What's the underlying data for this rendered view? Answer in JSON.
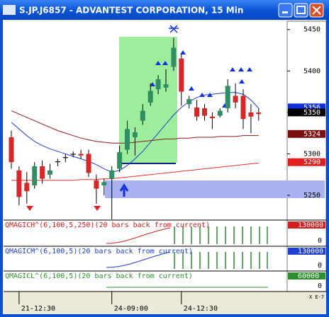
{
  "window": {
    "title": "S.JP.J6857 - ADVANTEST CORPORATION, 15 Min"
  },
  "chart_data": {
    "type": "candlestick",
    "categories": [
      null,
      "21-12:30",
      null,
      null,
      null,
      null,
      null,
      null,
      null,
      null,
      null,
      null,
      null,
      "24-09:00",
      null,
      null,
      null,
      null,
      null,
      null,
      null,
      null,
      "24-12:30",
      null,
      null,
      null,
      null,
      null,
      null,
      null,
      null,
      null,
      null
    ],
    "open": [
      5320,
      5280,
      5265,
      5262,
      5285,
      5275,
      5290,
      5296,
      5299,
      5300,
      5300,
      5268,
      5262,
      5270,
      5282,
      5305,
      5320,
      5340,
      5362,
      5378,
      5380,
      5405,
      5415,
      5360,
      5356,
      5355,
      5345,
      5346,
      5355,
      5370,
      5370,
      5350,
      5350
    ],
    "high": [
      5328,
      5285,
      5278,
      5290,
      5292,
      5288,
      5294,
      5300,
      5303,
      5305,
      5305,
      5275,
      5270,
      5285,
      5310,
      5340,
      5332,
      5360,
      5385,
      5395,
      5402,
      5440,
      5420,
      5370,
      5365,
      5360,
      5350,
      5355,
      5390,
      5385,
      5378,
      5360,
      5355
    ],
    "low": [
      5282,
      5238,
      5240,
      5258,
      5264,
      5270,
      5285,
      5290,
      5296,
      5294,
      5272,
      5240,
      5250,
      5221,
      5278,
      5300,
      5298,
      5335,
      5358,
      5372,
      5375,
      5400,
      5358,
      5355,
      5340,
      5340,
      5330,
      5344,
      5350,
      5355,
      5330,
      5325,
      5340
    ],
    "close": [
      5290,
      5248,
      5255,
      5285,
      5270,
      5280,
      5291,
      5295,
      5300,
      5298,
      5277,
      5258,
      5266,
      5280,
      5302,
      5330,
      5326,
      5352,
      5376,
      5390,
      5384,
      5428,
      5375,
      5366,
      5345,
      5346,
      5343,
      5352,
      5382,
      5362,
      5342,
      5345,
      5348
    ],
    "up_color": "#2f8f62",
    "down_color": "#d62828",
    "overlays": [
      {
        "color": "#1f3fd0",
        "values": [
          5338,
          5330,
          5322,
          5315,
          5310,
          5306,
          5303,
          5300,
          5297,
          5294,
          5291,
          5287,
          5282,
          5278,
          5280,
          5286,
          5294,
          5303,
          5314,
          5325,
          5336,
          5347,
          5356,
          5363,
          5368,
          5371,
          5372,
          5373,
          5374,
          5374,
          5372,
          5365,
          5355
        ]
      },
      {
        "color": "#8b1a1a",
        "values": [
          5352,
          5348,
          5344,
          5340,
          5336,
          5332,
          5328,
          5325,
          5322,
          5319,
          5317,
          5315,
          5314,
          5313,
          5313,
          5313,
          5314,
          5315,
          5316,
          5317,
          5318,
          5318,
          5319,
          5319,
          5320,
          5320,
          5320,
          5321,
          5321,
          5321,
          5322,
          5322,
          5322
        ]
      },
      {
        "color": "#e03030",
        "values": [
          5268,
          5268,
          5268,
          5268,
          5268,
          5268,
          5268,
          5268,
          5268,
          5269,
          5269,
          5269,
          5270,
          5270,
          5271,
          5272,
          5273,
          5274,
          5275,
          5276,
          5277,
          5278,
          5279,
          5280,
          5281,
          5282,
          5283,
          5284,
          5285,
          5286,
          5287,
          5288,
          5289
        ]
      }
    ],
    "ylim": [
      5221,
      5460
    ],
    "yticks": [
      5250,
      5300,
      5350,
      5400,
      5450
    ],
    "price_labels": [
      {
        "value": 5356,
        "color": "#1030e0"
      },
      {
        "value": 5350,
        "color": "#000000"
      },
      {
        "value": 5324,
        "color": "#7a1010"
      },
      {
        "value": 5290,
        "color": "#e02020"
      }
    ]
  },
  "indicators": [
    {
      "label": "QMAGICH^(6,100,5,250)(20 bars back from current)",
      "color": "#d02020",
      "top": "130000",
      "bottom": "0"
    },
    {
      "label": "QMAGICM^(6,100,5)(20 bars back from current)",
      "color": "#1f3fd0",
      "top": "130000",
      "bottom": "0"
    },
    {
      "label": "QMAGICL^(6,100,5)(20 bars back from current)",
      "color": "#2f8f2f",
      "top": "60000",
      "bottom": "0"
    }
  ],
  "scale_note": "X E-7"
}
